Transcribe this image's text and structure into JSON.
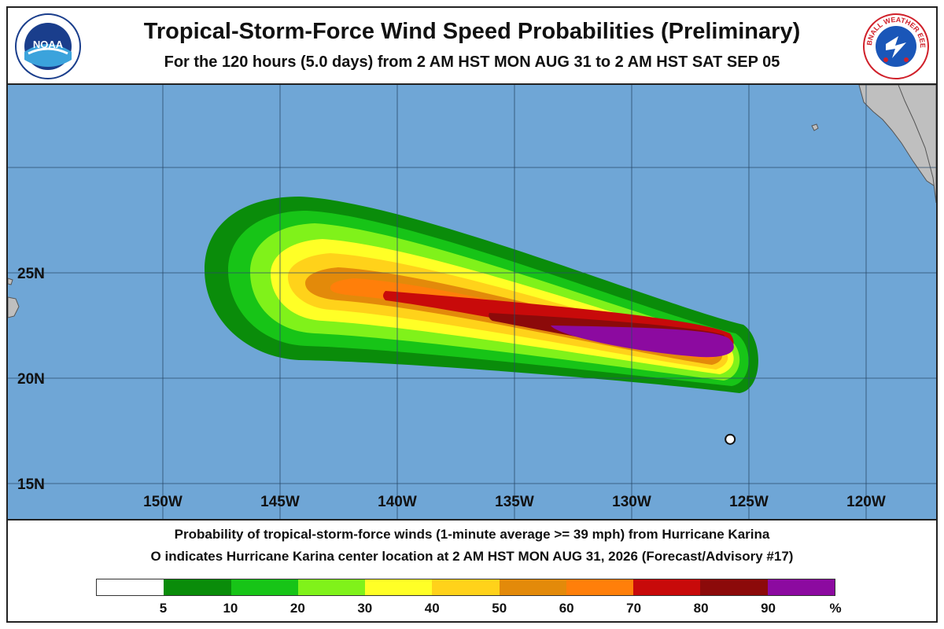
{
  "header": {
    "title": "Tropical-Storm-Force Wind Speed Probabilities (Preliminary)",
    "subtitle": "For the 120 hours (5.0 days) from 2 AM HST MON AUG 31 to 2 AM HST SAT SEP 05",
    "left_logo": {
      "icon": "noaa-logo-icon",
      "text": "NOAA"
    },
    "right_logo": {
      "icon": "weather-service-logo-icon",
      "text": "RETTBNALL WEATHER EEERIC3"
    }
  },
  "map": {
    "longitude_labels": [
      "150W",
      "145W",
      "140W",
      "135W",
      "130W",
      "125W",
      "120W"
    ],
    "latitude_labels": [
      "25N",
      "20N",
      "15N"
    ],
    "ocean_color": "#6fa6d6",
    "land_color": "#bfbfbf",
    "storm_center": {
      "lon": -125.8,
      "lat": 17.1
    }
  },
  "footer": {
    "line1": "Probability of tropical-storm-force winds (1-minute average >= 39 mph) from Hurricane Karina",
    "line2": "O indicates Hurricane Karina center location at 2 AM HST MON AUG 31, 2026 (Forecast/Advisory #17)"
  },
  "legend": {
    "colors": [
      "#ffffff",
      "#0a8c0a",
      "#17c417",
      "#80f21a",
      "#ffff26",
      "#ffd21a",
      "#e38a0a",
      "#ff7f0a",
      "#c80a0a",
      "#8c0a0a",
      "#8c0aa0"
    ],
    "labels": [
      "5",
      "10",
      "20",
      "30",
      "40",
      "50",
      "60",
      "70",
      "80",
      "90"
    ],
    "unit": "%"
  }
}
